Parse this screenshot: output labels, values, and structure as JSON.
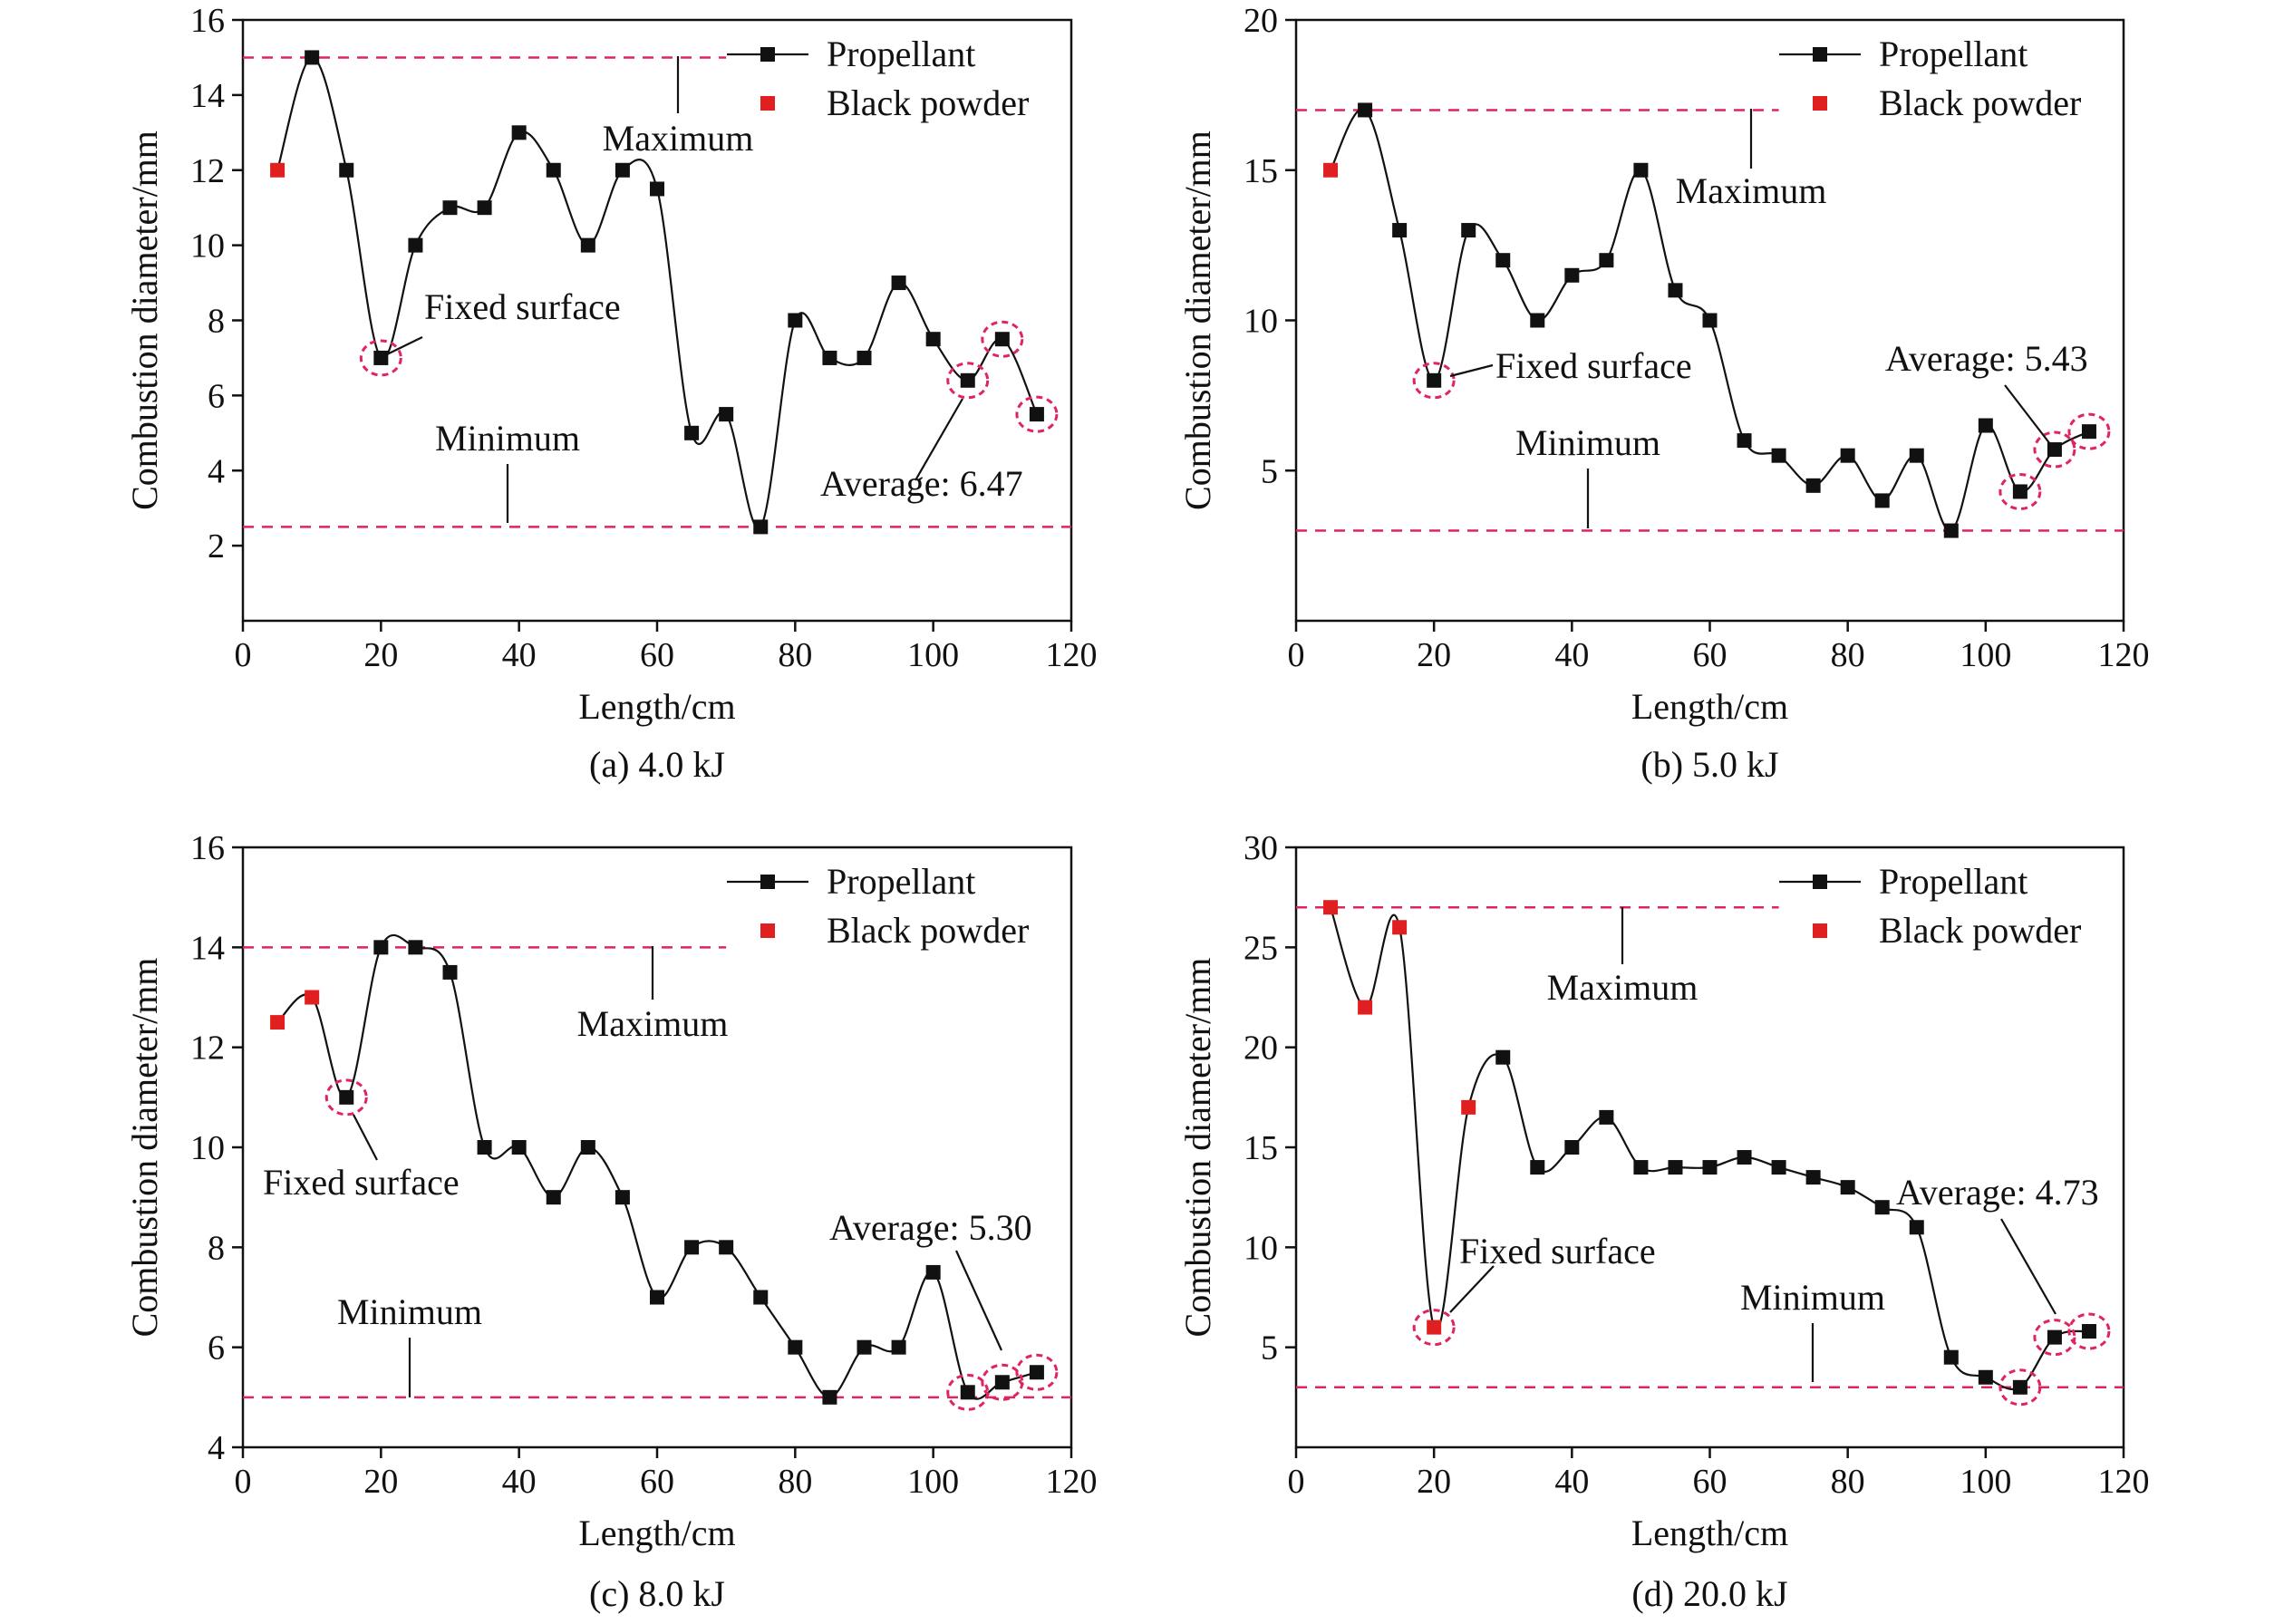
{
  "figure": {
    "panels": [
      {
        "caption": "(a) 4.0 kJ",
        "xlabel": "Length/cm",
        "ylabel": "Combustion diameter/mm",
        "xlim": [
          0,
          120
        ],
        "ylim": [
          0,
          16
        ],
        "xticks": [
          0,
          20,
          40,
          60,
          80,
          100,
          120
        ],
        "yticks": [
          2,
          4,
          6,
          8,
          10,
          12,
          14,
          16
        ],
        "legend": [
          "Propellant",
          "Black powder"
        ],
        "annotations": [
          "Maximum",
          "Minimum",
          "Fixed surface",
          "Average: 6.47"
        ]
      },
      {
        "caption": "(b) 5.0 kJ",
        "xlabel": "Length/cm",
        "ylabel": "Combustion diameter/mm",
        "xlim": [
          0,
          120
        ],
        "ylim": [
          0,
          20
        ],
        "xticks": [
          0,
          20,
          40,
          60,
          80,
          100,
          120
        ],
        "yticks": [
          5,
          10,
          15,
          20
        ],
        "legend": [
          "Propellant",
          "Black powder"
        ],
        "annotations": [
          "Maximum",
          "Minimum",
          "Fixed surface",
          "Average: 5.43"
        ]
      },
      {
        "caption": "(c) 8.0 kJ",
        "xlabel": "Length/cm",
        "ylabel": "Combustion diameter/mm",
        "xlim": [
          0,
          120
        ],
        "ylim": [
          4,
          16
        ],
        "xticks": [
          0,
          20,
          40,
          60,
          80,
          100,
          120
        ],
        "yticks": [
          4,
          6,
          8,
          10,
          12,
          14,
          16
        ],
        "legend": [
          "Propellant",
          "Black powder"
        ],
        "annotations": [
          "Maximum",
          "Minimum",
          "Fixed surface",
          "Average: 5.30"
        ]
      },
      {
        "caption": "(d) 20.0 kJ",
        "xlabel": "Length/cm",
        "ylabel": "Combustion diameter/mm",
        "xlim": [
          0,
          120
        ],
        "ylim": [
          0,
          30
        ],
        "xticks": [
          0,
          20,
          40,
          60,
          80,
          100,
          120
        ],
        "yticks": [
          5,
          10,
          15,
          20,
          25,
          30
        ],
        "legend": [
          "Propellant",
          "Black powder"
        ],
        "annotations": [
          "Maximum",
          "Minimum",
          "Fixed surface",
          "Average: 4.73"
        ]
      }
    ]
  },
  "chart_data": [
    {
      "type": "scatter",
      "title": "(a) 4.0 kJ",
      "xlabel": "Length/cm",
      "ylabel": "Combustion diameter/mm",
      "xlim": [
        0,
        120
      ],
      "ylim": [
        0,
        16
      ],
      "legend_position": "top-right",
      "series": [
        {
          "name": "Propellant",
          "color": "#111111",
          "marker": "square",
          "smoothed_line": true,
          "x": [
            10,
            15,
            20,
            25,
            30,
            35,
            40,
            45,
            50,
            55,
            60,
            65,
            70,
            75,
            80,
            85,
            90,
            95,
            100,
            105,
            110,
            115
          ],
          "y": [
            15,
            12,
            7,
            10,
            11,
            11,
            13,
            12,
            10,
            12,
            11.5,
            5,
            5.5,
            2.5,
            8,
            7,
            7,
            9,
            7.5,
            6.4,
            7.5,
            5.5
          ]
        },
        {
          "name": "Black powder",
          "color": "#e02020",
          "marker": "square",
          "x": [
            5
          ],
          "y": [
            12
          ]
        }
      ],
      "reference_lines": {
        "maximum": 15,
        "minimum": 2.5,
        "color": "#e0245e"
      },
      "highlighted_x": [
        20,
        105,
        110,
        115
      ],
      "average": 6.47
    },
    {
      "type": "scatter",
      "title": "(b) 5.0 kJ",
      "xlabel": "Length/cm",
      "ylabel": "Combustion diameter/mm",
      "xlim": [
        0,
        120
      ],
      "ylim": [
        0,
        20
      ],
      "legend_position": "top-right",
      "series": [
        {
          "name": "Propellant",
          "color": "#111111",
          "marker": "square",
          "smoothed_line": true,
          "x": [
            10,
            15,
            20,
            25,
            30,
            35,
            40,
            45,
            50,
            55,
            60,
            65,
            70,
            75,
            80,
            85,
            90,
            95,
            100,
            105,
            110,
            115
          ],
          "y": [
            17,
            13,
            8,
            13,
            12,
            10,
            11.5,
            12,
            15,
            11,
            10,
            6,
            5.5,
            4.5,
            5.5,
            4,
            5.5,
            3,
            6.5,
            4.3,
            5.7,
            6.3
          ]
        },
        {
          "name": "Black powder",
          "color": "#e02020",
          "marker": "square",
          "x": [
            5
          ],
          "y": [
            15
          ]
        }
      ],
      "reference_lines": {
        "maximum": 17,
        "minimum": 3,
        "color": "#e0245e"
      },
      "highlighted_x": [
        20,
        105,
        110,
        115
      ],
      "average": 5.43
    },
    {
      "type": "scatter",
      "title": "(c) 8.0 kJ",
      "xlabel": "Length/cm",
      "ylabel": "Combustion diameter/mm",
      "xlim": [
        0,
        120
      ],
      "ylim": [
        4,
        16
      ],
      "legend_position": "top-right",
      "series": [
        {
          "name": "Propellant",
          "color": "#111111",
          "marker": "square",
          "smoothed_line": true,
          "x": [
            15,
            20,
            25,
            30,
            35,
            40,
            45,
            50,
            55,
            60,
            65,
            70,
            75,
            80,
            85,
            90,
            95,
            100,
            105,
            110,
            115
          ],
          "y": [
            11,
            14,
            14,
            13.5,
            10,
            10,
            9,
            10,
            9,
            7,
            8,
            8,
            7,
            6,
            5,
            6,
            6,
            7.5,
            5.1,
            5.3,
            5.5
          ]
        },
        {
          "name": "Black powder",
          "color": "#e02020",
          "marker": "square",
          "x": [
            5,
            10
          ],
          "y": [
            12.5,
            13
          ]
        }
      ],
      "reference_lines": {
        "maximum": 14,
        "minimum": 5,
        "color": "#e0245e"
      },
      "highlighted_x": [
        15,
        105,
        110,
        115
      ],
      "average": 5.3
    },
    {
      "type": "scatter",
      "title": "(d) 20.0 kJ",
      "xlabel": "Length/cm",
      "ylabel": "Combustion diameter/mm",
      "xlim": [
        0,
        120
      ],
      "ylim": [
        0,
        30
      ],
      "legend_position": "top-right",
      "series": [
        {
          "name": "Propellant",
          "color": "#111111",
          "marker": "square",
          "smoothed_line": true,
          "x": [
            30,
            35,
            40,
            45,
            50,
            55,
            60,
            65,
            70,
            75,
            80,
            85,
            90,
            95,
            100,
            105,
            110,
            115
          ],
          "y": [
            19.5,
            14,
            15,
            16.5,
            14,
            14,
            14,
            14.5,
            14,
            13.5,
            13,
            12,
            11,
            4.5,
            3.5,
            3,
            5.5,
            5.8
          ]
        },
        {
          "name": "Black powder",
          "color": "#e02020",
          "marker": "square",
          "x": [
            5,
            10,
            15,
            20,
            25
          ],
          "y": [
            27,
            22,
            26,
            6,
            17
          ]
        }
      ],
      "reference_lines": {
        "maximum": 27,
        "minimum": 3,
        "color": "#e0245e"
      },
      "highlighted_x": [
        20,
        105,
        110,
        115
      ],
      "average": 4.73
    }
  ]
}
